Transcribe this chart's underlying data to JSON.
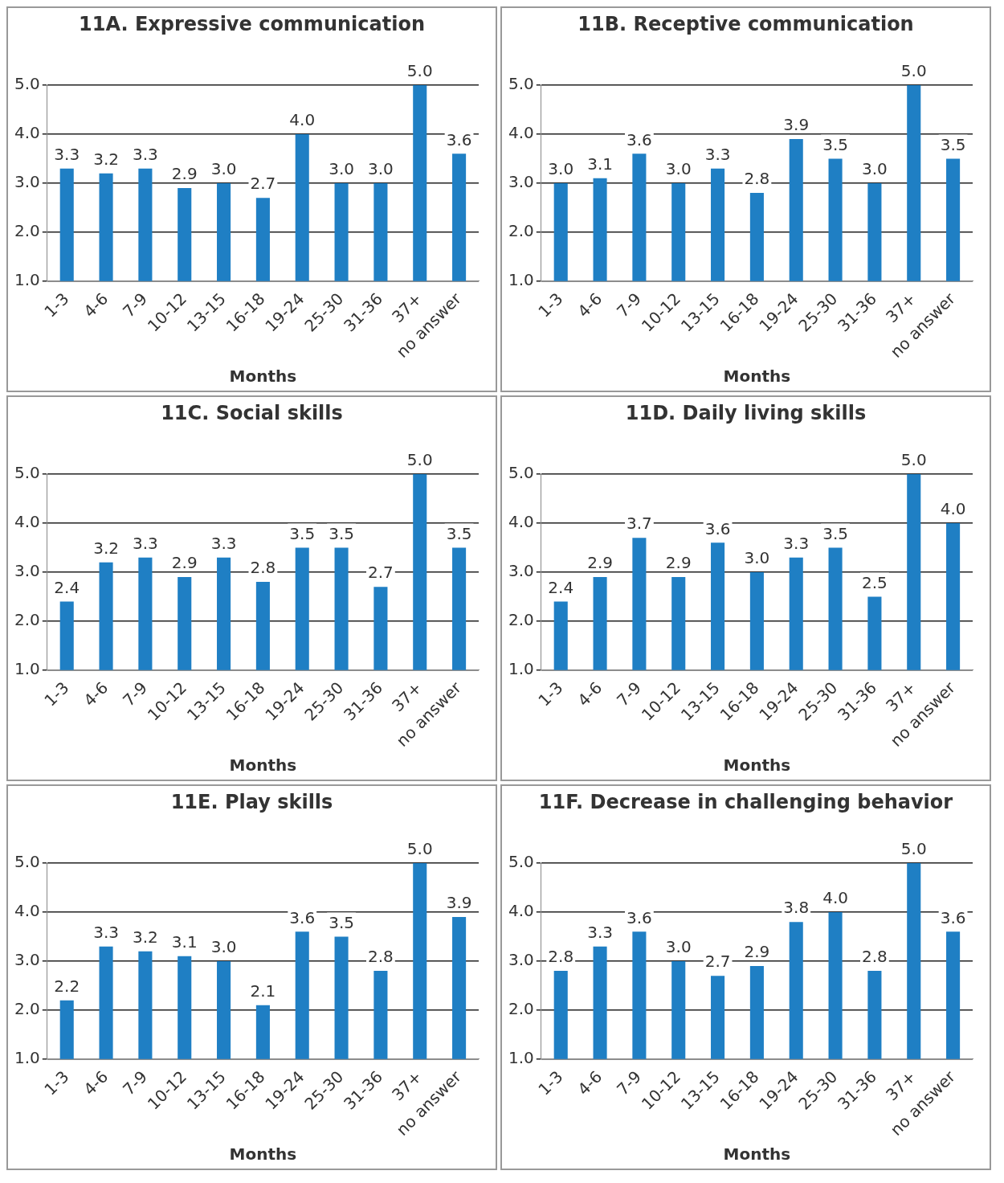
{
  "chart_data": [
    {
      "type": "bar",
      "title": "11A. Expressive communication",
      "xlabel": "Months",
      "categories": [
        "1-3",
        "4-6",
        "7-9",
        "10-12",
        "13-15",
        "16-18",
        "19-24",
        "25-30",
        "31-36",
        "37+",
        "no answer"
      ],
      "values": [
        3.3,
        3.2,
        3.3,
        2.9,
        3.0,
        2.7,
        4.0,
        3.0,
        3.0,
        5.0,
        3.6
      ],
      "value_labels": [
        "3.3",
        "3.2",
        "3.3",
        "2.9",
        "3.0",
        "2.7",
        "4.0",
        "3.0",
        "3.0",
        "5.0",
        "3.6"
      ],
      "color": "#1f7fc4",
      "ylim": [
        1,
        5
      ],
      "yticks": [
        {
          "value": 1,
          "label": "1.0"
        },
        {
          "value": 2,
          "label": "2.0"
        },
        {
          "value": 3,
          "label": "3.0"
        },
        {
          "value": 4,
          "label": "4.0"
        },
        {
          "value": 5,
          "label": "5.0"
        }
      ],
      "grid": "y"
    },
    {
      "type": "bar",
      "title": "11B. Receptive communication",
      "xlabel": "Months",
      "categories": [
        "1-3",
        "4-6",
        "7-9",
        "10-12",
        "13-15",
        "16-18",
        "19-24",
        "25-30",
        "31-36",
        "37+",
        "no answer"
      ],
      "values": [
        3.0,
        3.1,
        3.6,
        3.0,
        3.3,
        2.8,
        3.9,
        3.5,
        3.0,
        5.0,
        3.5
      ],
      "value_labels": [
        "3.0",
        "3.1",
        "3.6",
        "3.0",
        "3.3",
        "2.8",
        "3.9",
        "3.5",
        "3.0",
        "5.0",
        "3.5"
      ],
      "color": "#1f7fc4",
      "ylim": [
        1,
        5
      ],
      "yticks": [
        {
          "value": 1,
          "label": "1.0"
        },
        {
          "value": 2,
          "label": "2.0"
        },
        {
          "value": 3,
          "label": "3.0"
        },
        {
          "value": 4,
          "label": "4.0"
        },
        {
          "value": 5,
          "label": "5.0"
        }
      ],
      "grid": "y"
    },
    {
      "type": "bar",
      "title": "11C. Social skills",
      "xlabel": "Months",
      "categories": [
        "1-3",
        "4-6",
        "7-9",
        "10-12",
        "13-15",
        "16-18",
        "19-24",
        "25-30",
        "31-36",
        "37+",
        "no answer"
      ],
      "values": [
        2.4,
        3.2,
        3.3,
        2.9,
        3.3,
        2.8,
        3.5,
        3.5,
        2.7,
        5.0,
        3.5
      ],
      "value_labels": [
        "2.4",
        "3.2",
        "3.3",
        "2.9",
        "3.3",
        "2.8",
        "3.5",
        "3.5",
        "2.7",
        "5.0",
        "3.5"
      ],
      "color": "#1f7fc4",
      "ylim": [
        1,
        5
      ],
      "yticks": [
        {
          "value": 1,
          "label": "1.0"
        },
        {
          "value": 2,
          "label": "2.0"
        },
        {
          "value": 3,
          "label": "3.0"
        },
        {
          "value": 4,
          "label": "4.0"
        },
        {
          "value": 5,
          "label": "5.0"
        }
      ],
      "grid": "y"
    },
    {
      "type": "bar",
      "title": "11D. Daily living skills",
      "xlabel": "Months",
      "categories": [
        "1-3",
        "4-6",
        "7-9",
        "10-12",
        "13-15",
        "16-18",
        "19-24",
        "25-30",
        "31-36",
        "37+",
        "no answer"
      ],
      "values": [
        2.4,
        2.9,
        3.7,
        2.9,
        3.6,
        3.0,
        3.3,
        3.5,
        2.5,
        5.0,
        4.0
      ],
      "value_labels": [
        "2.4",
        "2.9",
        "3.7",
        "2.9",
        "3.6",
        "3.0",
        "3.3",
        "3.5",
        "2.5",
        "5.0",
        "4.0"
      ],
      "color": "#1f7fc4",
      "ylim": [
        1,
        5
      ],
      "yticks": [
        {
          "value": 1,
          "label": "1.0"
        },
        {
          "value": 2,
          "label": "2.0"
        },
        {
          "value": 3,
          "label": "3.0"
        },
        {
          "value": 4,
          "label": "4.0"
        },
        {
          "value": 5,
          "label": "5.0"
        }
      ],
      "grid": "y"
    },
    {
      "type": "bar",
      "title": "11E. Play skills",
      "xlabel": "Months",
      "categories": [
        "1-3",
        "4-6",
        "7-9",
        "10-12",
        "13-15",
        "16-18",
        "19-24",
        "25-30",
        "31-36",
        "37+",
        "no answer"
      ],
      "values": [
        2.2,
        3.3,
        3.2,
        3.1,
        3.0,
        2.1,
        3.6,
        3.5,
        2.8,
        5.0,
        3.9
      ],
      "value_labels": [
        "2.2",
        "3.3",
        "3.2",
        "3.1",
        "3.0",
        "2.1",
        "3.6",
        "3.5",
        "2.8",
        "5.0",
        "3.9"
      ],
      "color": "#1f7fc4",
      "ylim": [
        1,
        5
      ],
      "yticks": [
        {
          "value": 1,
          "label": "1.0"
        },
        {
          "value": 2,
          "label": "2.0"
        },
        {
          "value": 3,
          "label": "3.0"
        },
        {
          "value": 4,
          "label": "4.0"
        },
        {
          "value": 5,
          "label": "5.0"
        }
      ],
      "grid": "y"
    },
    {
      "type": "bar",
      "title": "11F. Decrease in challenging behavior",
      "xlabel": "Months",
      "categories": [
        "1-3",
        "4-6",
        "7-9",
        "10-12",
        "13-15",
        "16-18",
        "19-24",
        "25-30",
        "31-36",
        "37+",
        "no answer"
      ],
      "values": [
        2.8,
        3.3,
        3.6,
        3.0,
        2.7,
        2.9,
        3.8,
        4.0,
        2.8,
        5.0,
        3.6
      ],
      "value_labels": [
        "2.8",
        "3.3",
        "3.6",
        "3.0",
        "2.7",
        "2.9",
        "3.8",
        "4.0",
        "2.8",
        "5.0",
        "3.6"
      ],
      "color": "#1f7fc4",
      "ylim": [
        1,
        5
      ],
      "yticks": [
        {
          "value": 1,
          "label": "1.0"
        },
        {
          "value": 2,
          "label": "2.0"
        },
        {
          "value": 3,
          "label": "3.0"
        },
        {
          "value": 4,
          "label": "4.0"
        },
        {
          "value": 5,
          "label": "5.0"
        }
      ],
      "grid": "y"
    }
  ]
}
